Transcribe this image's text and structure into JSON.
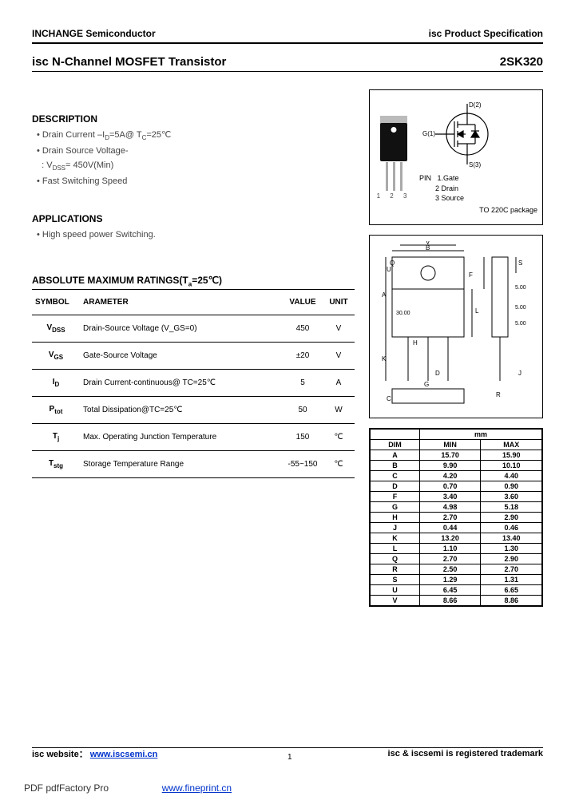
{
  "header": {
    "company": "INCHANGE Semiconductor",
    "spec": "isc Product Specification"
  },
  "title": {
    "product": "isc N-Channel MOSFET Transistor",
    "part_number": "2SK320"
  },
  "description": {
    "heading": "DESCRIPTION",
    "items": [
      "Drain Current –I_D=5A@ T_C=25℃",
      "Drain Source Voltage-",
      ": V_DSS= 450V(Min)",
      "Fast Switching Speed"
    ]
  },
  "applications": {
    "heading": "APPLICATIONS",
    "items": [
      "High speed power Switching."
    ]
  },
  "ratings": {
    "heading": "ABSOLUTE MAXIMUM RATINGS(T_a=25℃)",
    "columns": [
      "SYMBOL",
      "ARAMETER",
      "VALUE",
      "UNIT"
    ],
    "rows": [
      {
        "sym": "V_DSS",
        "param": "Drain-Source Voltage (V_GS=0)",
        "val": "450",
        "unit": "V"
      },
      {
        "sym": "V_GS",
        "param": "Gate-Source Voltage",
        "val": "±20",
        "unit": "V"
      },
      {
        "sym": "I_D",
        "param": "Drain Current-continuous@ TC=25℃",
        "val": "5",
        "unit": "A"
      },
      {
        "sym": "P_tot",
        "param": "Total Dissipation@TC=25℃",
        "val": "50",
        "unit": "W"
      },
      {
        "sym": "T_j",
        "param": "Max. Operating Junction Temperature",
        "val": "150",
        "unit": "℃"
      },
      {
        "sym": "T_stg",
        "param": "Storage Temperature Range",
        "val": "-55~150",
        "unit": "℃"
      }
    ]
  },
  "package_fig": {
    "pins_label": "1 2 3",
    "terminals": {
      "d": "D(2)",
      "g": "G(1)",
      "s": "S(3)"
    },
    "pin_heading": "PIN",
    "pin_list": [
      "1.Gate",
      "2 Drain",
      "3 Source"
    ],
    "package": "TO 220C package"
  },
  "dimensions": {
    "header_mm": "mm",
    "cols": [
      "DIM",
      "MIN",
      "MAX"
    ],
    "rows": [
      [
        "A",
        "15.70",
        "15.90"
      ],
      [
        "B",
        "9.90",
        "10.10"
      ],
      [
        "C",
        "4.20",
        "4.40"
      ],
      [
        "D",
        "0.70",
        "0.90"
      ],
      [
        "F",
        "3.40",
        "3.60"
      ],
      [
        "G",
        "4.98",
        "5.18"
      ],
      [
        "H",
        "2.70",
        "2.90"
      ],
      [
        "J",
        "0.44",
        "0.46"
      ],
      [
        "K",
        "13.20",
        "13.40"
      ],
      [
        "L",
        "1.10",
        "1.30"
      ],
      [
        "Q",
        "2.70",
        "2.90"
      ],
      [
        "R",
        "2.50",
        "2.70"
      ],
      [
        "S",
        "1.29",
        "1.31"
      ],
      [
        "U",
        "6.45",
        "6.65"
      ],
      [
        "V",
        "8.66",
        "8.86"
      ]
    ]
  },
  "outline_labels": [
    "A",
    "B",
    "C",
    "D",
    "F",
    "G",
    "H",
    "J",
    "K",
    "L",
    "Q",
    "R",
    "S",
    "U",
    "V"
  ],
  "footer": {
    "website_label": "isc website：",
    "website_url": "www.iscsemi.cn",
    "trademark": "isc & iscsemi is registered trademark",
    "page": "1"
  },
  "pdf_footer": {
    "text": "PDF pdfFactory Pro",
    "link": "www.fineprint.cn"
  },
  "colors": {
    "text": "#000000",
    "muted": "#444444",
    "link": "#0033cc",
    "chip": "#111111",
    "metal": "#aaaaaa",
    "tab": "#bbbbbb"
  }
}
